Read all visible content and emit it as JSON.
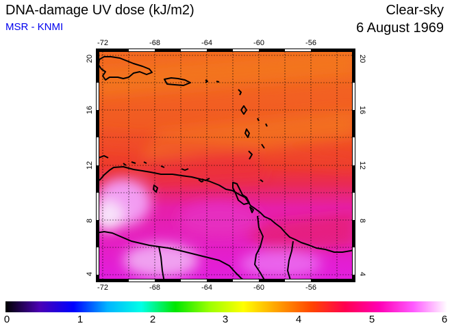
{
  "header": {
    "title": "DNA-damage UV dose (kJ/m2)",
    "source": "MSR - KNMI",
    "condition": "Clear-sky",
    "date": "6 August 1969"
  },
  "map": {
    "lon_ticks": [
      "-72",
      "-68",
      "-64",
      "-60",
      "-56"
    ],
    "lat_ticks": [
      "20",
      "16",
      "12",
      "8",
      "4"
    ],
    "lon_range": [
      -72,
      -52.5
    ],
    "lat_range": [
      3.5,
      20.5
    ]
  },
  "colorbar": {
    "labels": [
      "0",
      "1",
      "2",
      "3",
      "4",
      "5",
      "6"
    ],
    "colors": [
      "#000000",
      "#4b00b4",
      "#0000ff",
      "#00b4ff",
      "#00ffe6",
      "#00e600",
      "#9bff00",
      "#ffff00",
      "#ffa000",
      "#ff4600",
      "#ff0050",
      "#ff00b4",
      "#ff5aff",
      "#ffffff"
    ]
  }
}
